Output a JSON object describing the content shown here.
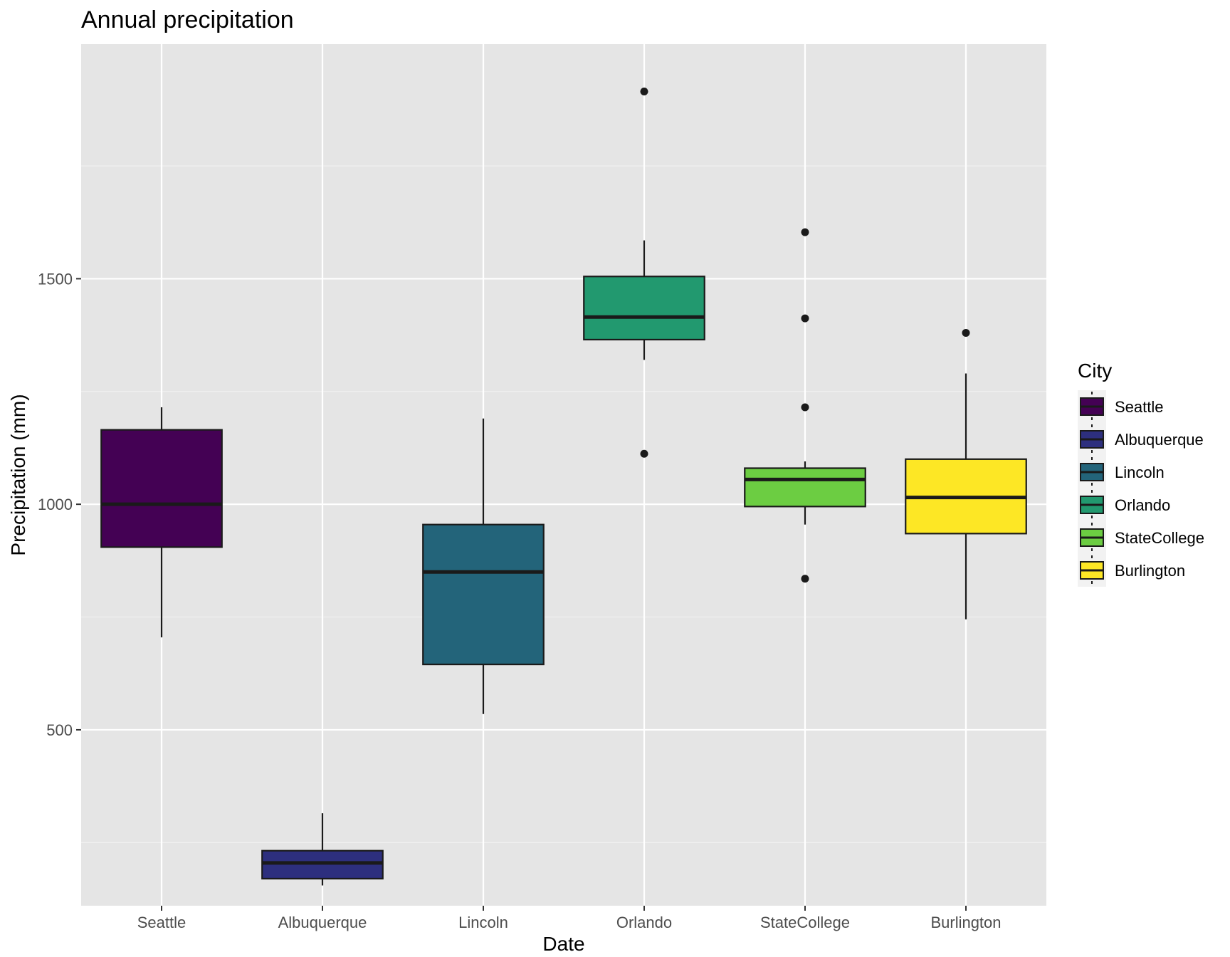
{
  "chart_data": {
    "type": "box",
    "title": "Annual precipitation",
    "xlabel": "Date",
    "ylabel": "Precipitation (mm)",
    "ylim": [
      110,
      2020
    ],
    "yticks": [
      500,
      1000,
      1500
    ],
    "grid": true,
    "legend": {
      "title": "City",
      "position": "right"
    },
    "categories": [
      "Seattle",
      "Albuquerque",
      "Lincoln",
      "Orlando",
      "StateCollege",
      "Burlington"
    ],
    "series": [
      {
        "name": "Seattle",
        "color": "#440154",
        "whisker_low": 705,
        "q1": 905,
        "median": 1000,
        "q3": 1165,
        "whisker_high": 1215,
        "outliers": []
      },
      {
        "name": "Albuquerque",
        "color": "#2D2F7E",
        "whisker_low": 155,
        "q1": 170,
        "median": 205,
        "q3": 232,
        "whisker_high": 315,
        "outliers": []
      },
      {
        "name": "Lincoln",
        "color": "#23647A",
        "whisker_low": 535,
        "q1": 645,
        "median": 850,
        "q3": 955,
        "whisker_high": 1190,
        "outliers": []
      },
      {
        "name": "Orlando",
        "color": "#22996F",
        "whisker_low": 1320,
        "q1": 1365,
        "median": 1415,
        "q3": 1505,
        "whisker_high": 1585,
        "outliers": [
          1112,
          1915
        ]
      },
      {
        "name": "StateCollege",
        "color": "#6CCD42",
        "whisker_low": 955,
        "q1": 995,
        "median": 1055,
        "q3": 1080,
        "whisker_high": 1095,
        "outliers": [
          835,
          1215,
          1412,
          1603
        ]
      },
      {
        "name": "Burlington",
        "color": "#FDE725",
        "whisker_low": 745,
        "q1": 935,
        "median": 1015,
        "q3": 1100,
        "whisker_high": 1290,
        "outliers": [
          1380
        ]
      }
    ]
  }
}
